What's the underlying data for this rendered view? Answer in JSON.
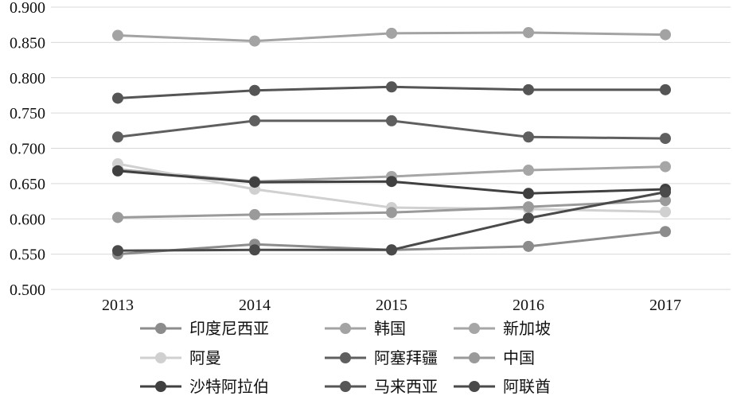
{
  "chart_data": {
    "type": "line",
    "title": "",
    "xlabel": "",
    "ylabel": "",
    "categories": [
      "2013",
      "2014",
      "2015",
      "2016",
      "2017"
    ],
    "ylim": [
      0.5,
      0.9
    ],
    "yticks": [
      "0.500",
      "0.550",
      "0.600",
      "0.650",
      "0.700",
      "0.750",
      "0.800",
      "0.850",
      "0.900"
    ],
    "grid": true,
    "legend_position": "bottom",
    "series": [
      {
        "name": "印度尼西亚",
        "color": "#8c8c8c",
        "values": [
          0.55,
          0.564,
          0.556,
          0.561,
          0.582
        ]
      },
      {
        "name": "韩国",
        "color": "#a3a3a3",
        "values": [
          0.86,
          0.852,
          0.863,
          0.864,
          0.861
        ]
      },
      {
        "name": "新加坡",
        "color": "#a6a6a6",
        "values": [
          0.67,
          0.653,
          0.66,
          0.669,
          0.674
        ]
      },
      {
        "name": "阿曼",
        "color": "#d0d0d0",
        "values": [
          0.678,
          0.642,
          0.616,
          0.614,
          0.61
        ]
      },
      {
        "name": "阿塞拜疆",
        "color": "#5f5f5f",
        "values": [
          0.716,
          0.739,
          0.739,
          0.716,
          0.714
        ]
      },
      {
        "name": "中国",
        "color": "#9a9a9a",
        "values": [
          0.602,
          0.606,
          0.609,
          0.617,
          0.626
        ]
      },
      {
        "name": "沙特阿拉伯",
        "color": "#404040",
        "values": [
          0.668,
          0.652,
          0.653,
          0.636,
          0.642
        ]
      },
      {
        "name": "马来西亚",
        "color": "#555555",
        "values": [
          0.771,
          0.782,
          0.787,
          0.783,
          0.783
        ]
      },
      {
        "name": "阿联酋",
        "color": "#4a4a4a",
        "values": [
          0.555,
          0.556,
          0.556,
          0.601,
          0.638
        ]
      }
    ]
  }
}
